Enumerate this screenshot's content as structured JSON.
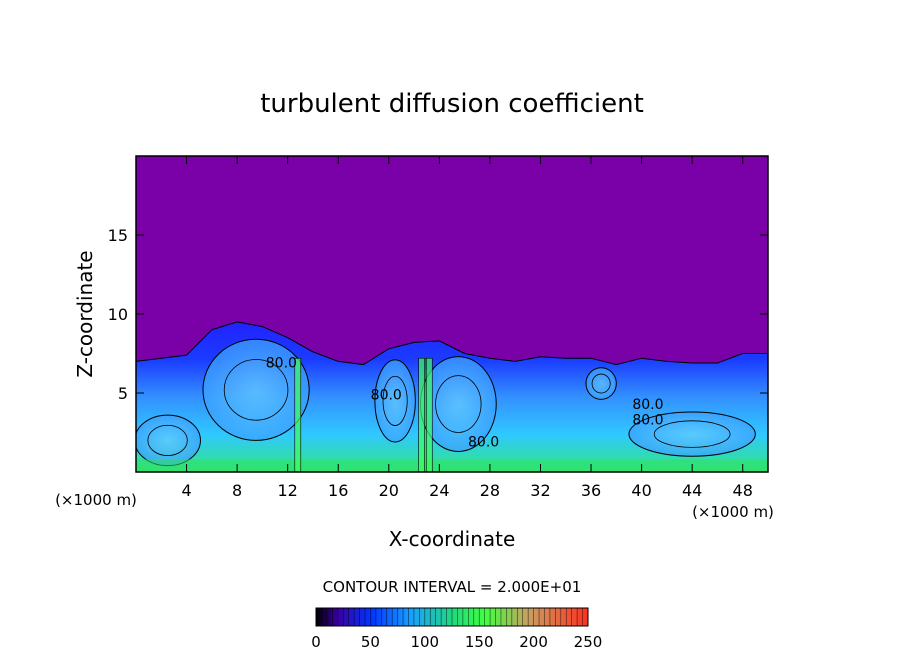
{
  "chart_data": {
    "type": "heatmap",
    "title": "turbulent diffusion coefficient",
    "xlabel": "X-coordinate",
    "ylabel": "Z-coordinate",
    "x_unit_left": "(×1000 m)",
    "x_unit_right": "(×1000 m)",
    "xlim": [
      0,
      50
    ],
    "ylim": [
      0,
      20
    ],
    "xticks": [
      4,
      8,
      12,
      16,
      20,
      24,
      28,
      32,
      36,
      40,
      44,
      48
    ],
    "yticks": [
      5,
      10,
      15
    ],
    "contour_interval_text": "CONTOUR INTERVAL = 2.000E+01",
    "contour_labels": [
      {
        "text": "80.0",
        "x": 11.5,
        "z": 6.6
      },
      {
        "text": "80.0",
        "x": 19.8,
        "z": 4.6
      },
      {
        "text": "80.0",
        "x": 27.5,
        "z": 1.6
      },
      {
        "text": "80.0",
        "x": 40.5,
        "z": 3.0
      },
      {
        "text": "80.0",
        "x": 40.5,
        "z": 4.0
      }
    ],
    "colorbar": {
      "min": 0,
      "max": 250,
      "ticks": [
        0,
        50,
        100,
        150,
        200,
        250
      ]
    },
    "background_value": 0,
    "turbulent_layer_top": [
      {
        "x": 0,
        "z": 7.0
      },
      {
        "x": 2,
        "z": 7.2
      },
      {
        "x": 4,
        "z": 7.4
      },
      {
        "x": 6,
        "z": 9.0
      },
      {
        "x": 8,
        "z": 9.5
      },
      {
        "x": 10,
        "z": 9.2
      },
      {
        "x": 12,
        "z": 8.5
      },
      {
        "x": 14,
        "z": 7.6
      },
      {
        "x": 16,
        "z": 7.0
      },
      {
        "x": 18,
        "z": 6.8
      },
      {
        "x": 20,
        "z": 7.8
      },
      {
        "x": 22,
        "z": 8.2
      },
      {
        "x": 24,
        "z": 8.3
      },
      {
        "x": 26,
        "z": 7.5
      },
      {
        "x": 28,
        "z": 7.2
      },
      {
        "x": 30,
        "z": 7.0
      },
      {
        "x": 32,
        "z": 7.3
      },
      {
        "x": 34,
        "z": 7.2
      },
      {
        "x": 36,
        "z": 7.2
      },
      {
        "x": 38,
        "z": 6.8
      },
      {
        "x": 40,
        "z": 7.2
      },
      {
        "x": 42,
        "z": 7.0
      },
      {
        "x": 44,
        "z": 6.9
      },
      {
        "x": 46,
        "z": 6.9
      },
      {
        "x": 48,
        "z": 7.5
      },
      {
        "x": 50,
        "z": 7.5
      }
    ],
    "colors": {
      "background": "#7a00a8",
      "frame": "#000000"
    }
  }
}
